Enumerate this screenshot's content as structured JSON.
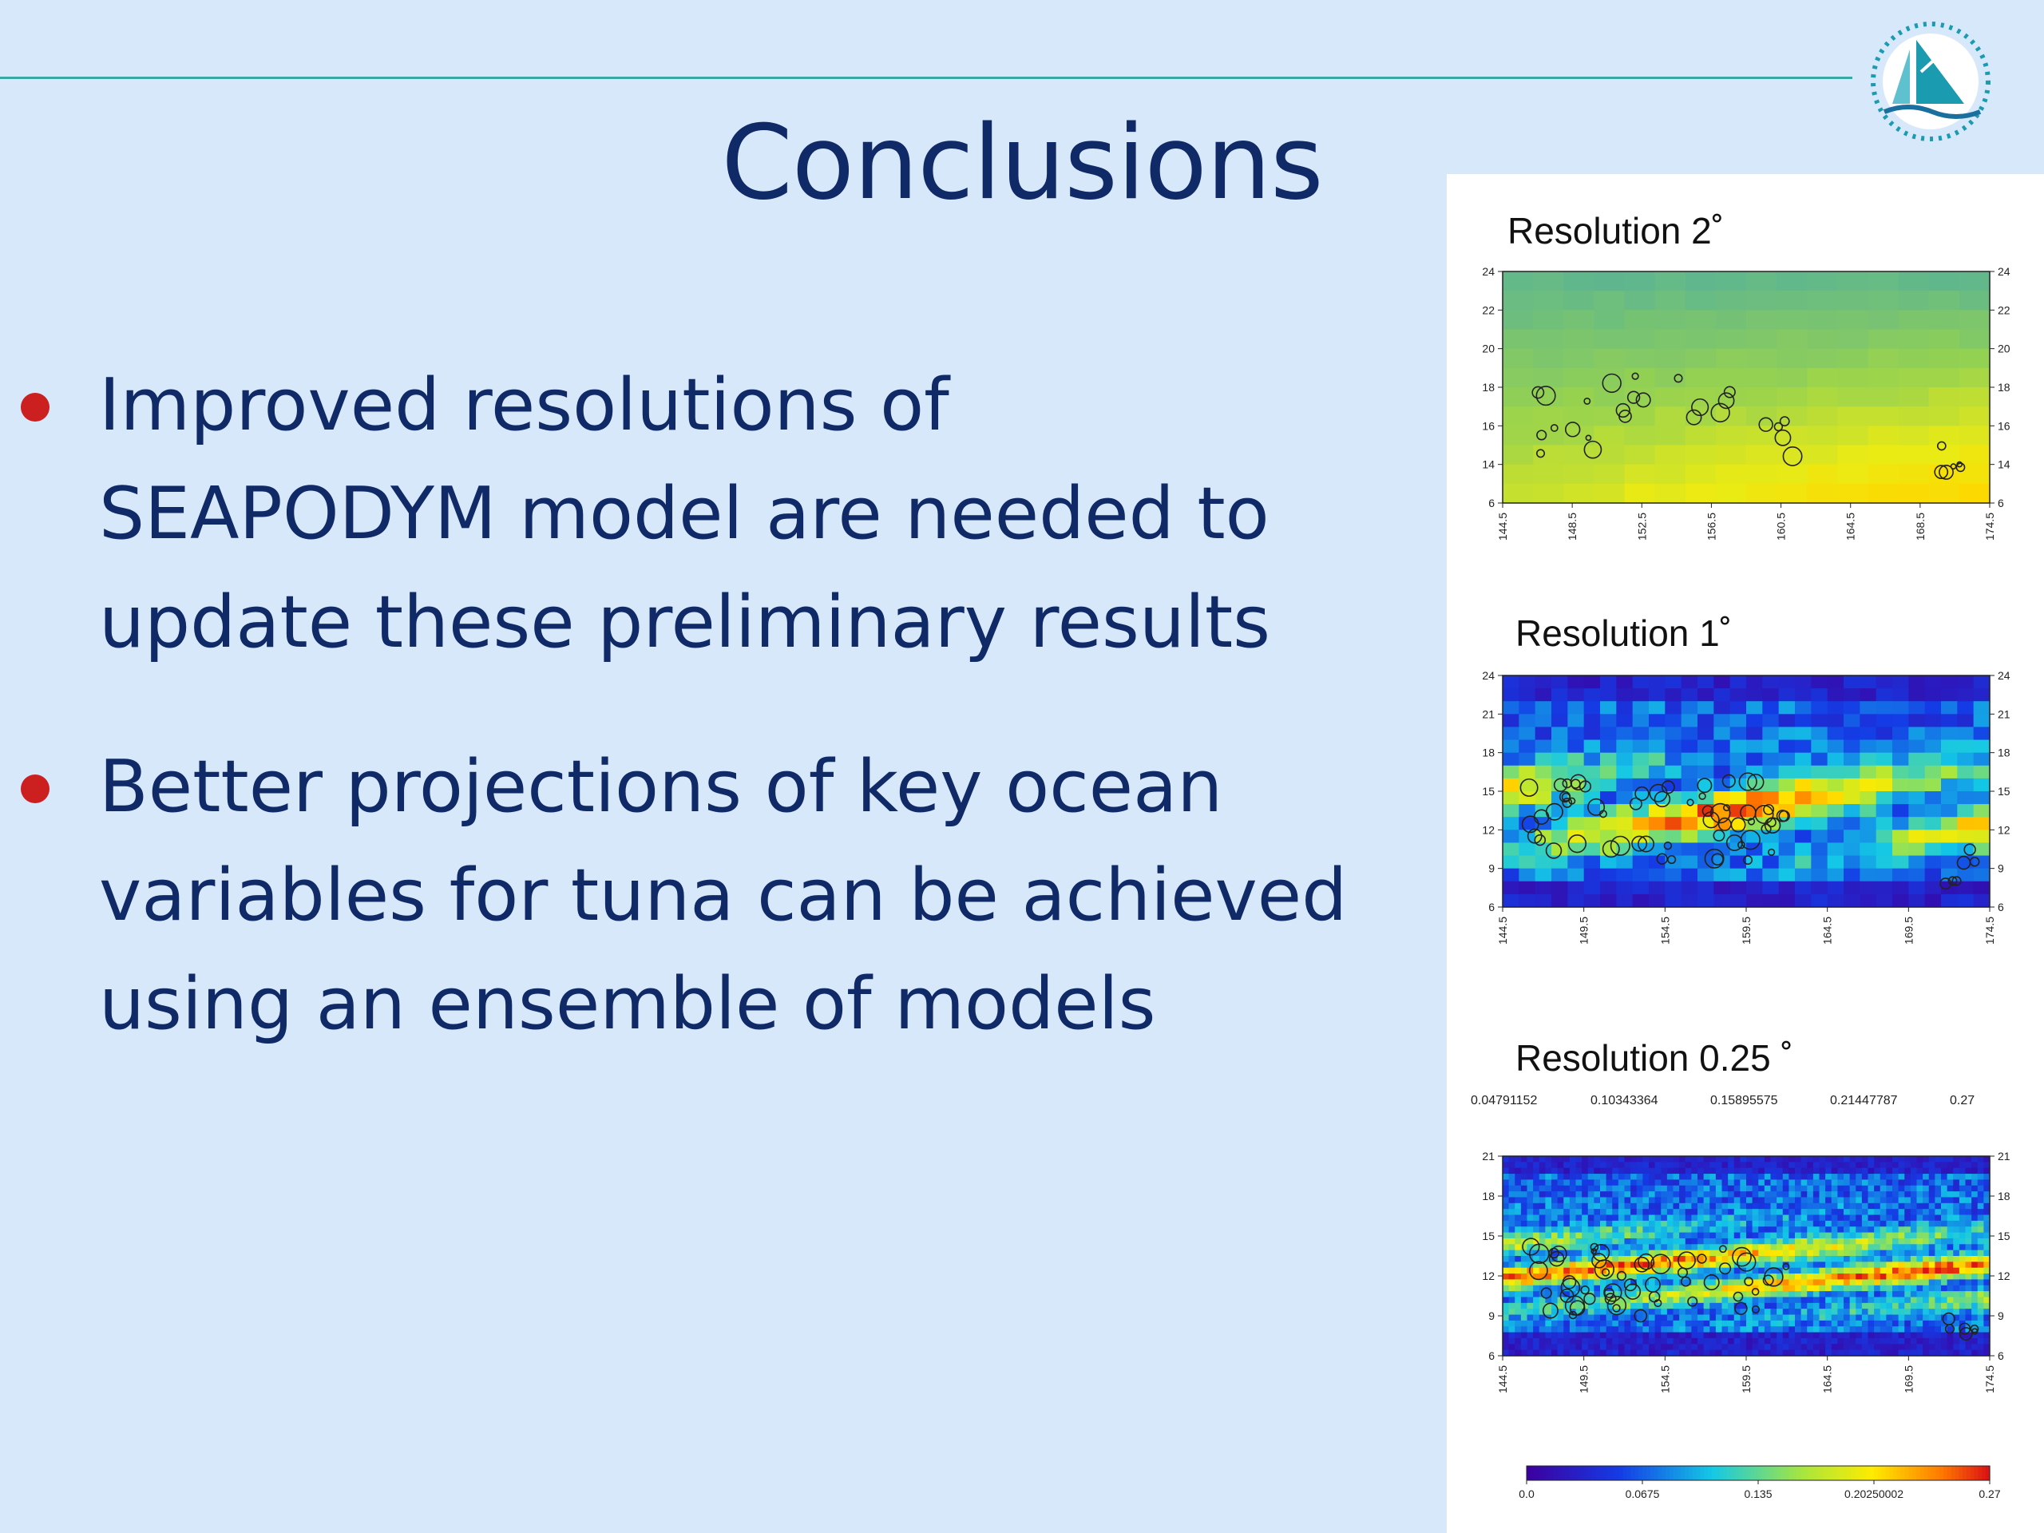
{
  "slide": {
    "title": "Conclusions",
    "bullets": [
      "Improved resolutions of\nSEAPODYM model are needed to\nupdate these preliminary results",
      "Better projections of key ocean\nvariables for tuna can be achieved\nusing an ensemble of models"
    ],
    "colors": {
      "title": "#0f2a66",
      "bullet_dot": "#cc1f1f",
      "background": "#d8e8fb",
      "rule": "#3aa7a3"
    }
  },
  "logo": {
    "icon": "sailboat-emblem-icon"
  },
  "chart_data": [
    {
      "type": "heatmap",
      "title": "Resolution  2˚",
      "x_ticks": [
        "144.5",
        "148.5",
        "152.5",
        "156.5",
        "160.5",
        "164.5",
        "168.5",
        "174.5"
      ],
      "y_ticks": [
        "6",
        "14",
        "16",
        "18",
        "20",
        "22",
        "24"
      ]
    },
    {
      "type": "heatmap",
      "title": "Resolution 1˚",
      "x_ticks": [
        "144.5",
        "149.5",
        "154.5",
        "159.5",
        "164.5",
        "169.5",
        "174.5"
      ],
      "y_ticks": [
        "6",
        "9",
        "12",
        "15",
        "18",
        "21",
        "24"
      ]
    },
    {
      "type": "heatmap",
      "title": "Resolution 0.25 ˚",
      "top_ticks": [
        "0.04791152",
        "0.10343364",
        "0.15895575",
        "0.21447787",
        "0.27"
      ],
      "x_ticks": [
        "144.5",
        "149.5",
        "154.5",
        "159.5",
        "164.5",
        "169.5",
        "174.5"
      ],
      "y_ticks": [
        "6",
        "9",
        "12",
        "15",
        "18",
        "21"
      ]
    }
  ],
  "colorbar": {
    "ticks": [
      "0.0",
      "0.0675",
      "0.135",
      "0.20250002",
      "0.27"
    ]
  }
}
